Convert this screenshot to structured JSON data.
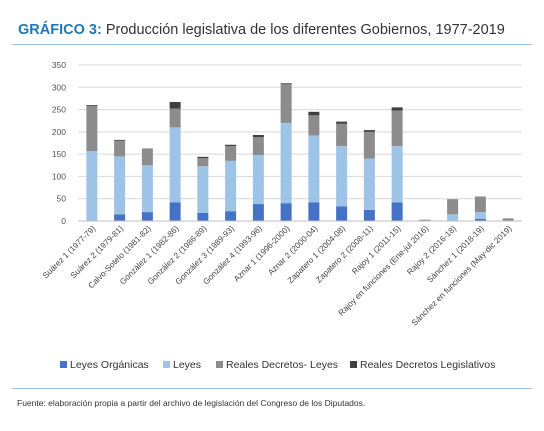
{
  "header": {
    "label": "GRÁFICO 3:",
    "title": "Producción legislativa de los diferentes Gobiernos, 1977-2019"
  },
  "footer": {
    "source": "Fuente: elaboración propia a partir del archivo de legislación del Congreso de los Diputados."
  },
  "chart_data": {
    "type": "bar",
    "stacked": true,
    "title": "Producción legislativa de los diferentes Gobiernos, 1977-2019",
    "ylim": [
      0,
      350
    ],
    "yticks": [
      0,
      50,
      100,
      150,
      200,
      250,
      300,
      350
    ],
    "grid": true,
    "legend_position": "bottom",
    "categories": [
      "Suárez 1 (1977-79)",
      "Suárez 2 (1979-81)",
      "Calvo-Sotelo (1981-82)",
      "González 1 (1982-86)",
      "González 2 (1986-89)",
      "González 3 (1989-93)",
      "González 4 (1993-96)",
      "Aznar 1 (1996-2000)",
      "Aznar 2 (2000-04)",
      "Zapatero 1 (2004-08)",
      "Zapatero 2 (2008-11)",
      "Rajoy 1 (2011-15)",
      "Rajoy en funciones (Ene-jul 2016)",
      "Rajoy 2 (2016-18)",
      "Sánchez 1 (2018-19)",
      "Sánchez en funciones (May-dic 2019)"
    ],
    "series": [
      {
        "name": "Leyes Orgánicas",
        "color": "#4472c4",
        "values": [
          0,
          15,
          20,
          42,
          18,
          22,
          38,
          40,
          42,
          33,
          25,
          42,
          0,
          0,
          5,
          0
        ]
      },
      {
        "name": "Leyes",
        "color": "#9dc3e6",
        "values": [
          157,
          130,
          105,
          168,
          105,
          113,
          110,
          180,
          150,
          135,
          115,
          126,
          0,
          15,
          15,
          0
        ]
      },
      {
        "name": "Reales Decretos- Leyes",
        "color": "#8c8c8c",
        "values": [
          102,
          35,
          38,
          42,
          18,
          33,
          40,
          88,
          45,
          50,
          60,
          80,
          3,
          34,
          35,
          6
        ]
      },
      {
        "name": "Reales Decretos Legislativos",
        "color": "#404040",
        "values": [
          1,
          2,
          0,
          15,
          3,
          3,
          5,
          1,
          8,
          5,
          4,
          7,
          0,
          0,
          0,
          0
        ]
      }
    ]
  }
}
